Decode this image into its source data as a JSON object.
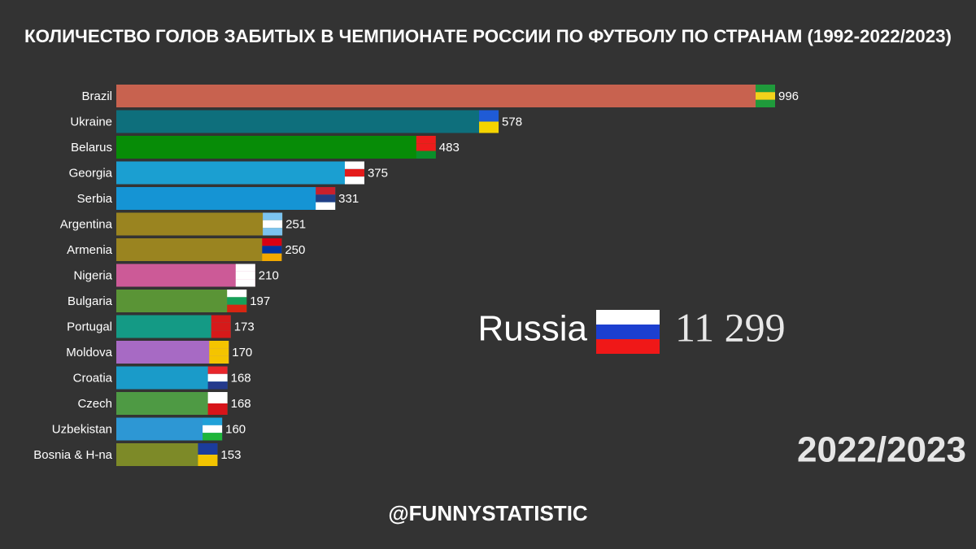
{
  "chart_data": {
    "type": "hbar",
    "title": "КОЛИЧЕСТВО ГОЛОВ ЗАБИТЫХ В ЧЕМПИОНАТЕ РОССИИ ПО ФУТБОЛУ ПО СТРАНАМ (1992-2022/2023)",
    "categories": [
      "Brazil",
      "Ukraine",
      "Belarus",
      "Georgia",
      "Serbia",
      "Argentina",
      "Armenia",
      "Nigeria",
      "Bulgaria",
      "Portugal",
      "Moldova",
      "Croatia",
      "Czech",
      "Uzbekistan",
      "Bosnia & H-na"
    ],
    "values": [
      996,
      578,
      483,
      375,
      331,
      251,
      250,
      210,
      197,
      173,
      170,
      168,
      168,
      160,
      153
    ],
    "colors": [
      "#c8624f",
      "#0e6f7c",
      "#078c07",
      "#1b9fd1",
      "#1594d4",
      "#9a8420",
      "#9a8420",
      "#cc5a97",
      "#5a9436",
      "#149a85",
      "#a76ac4",
      "#1a9bc9",
      "#4e9a44",
      "#2d97d4",
      "#7d8a28"
    ],
    "annotations": {
      "country": "Russia",
      "total": "11 299",
      "season": "2022/2023",
      "credit": "@FUNNYSTATISTIC"
    }
  }
}
